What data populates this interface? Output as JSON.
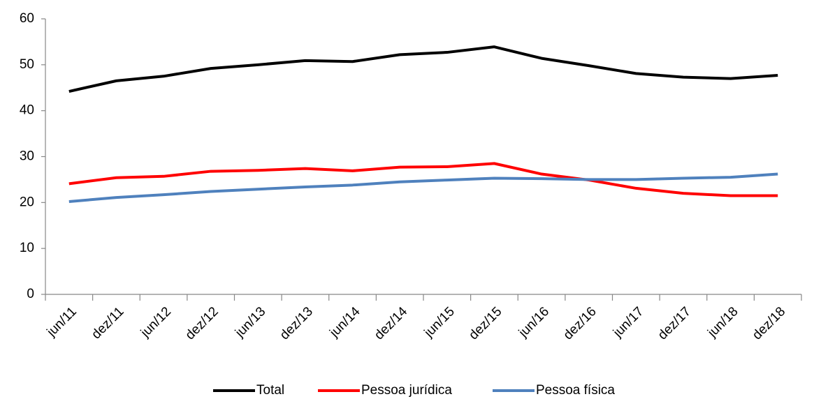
{
  "chart_data": {
    "type": "line",
    "categories": [
      "jun/11",
      "dez/11",
      "jun/12",
      "dez/12",
      "jun/13",
      "dez/13",
      "jun/14",
      "dez/14",
      "jun/15",
      "dez/15",
      "jun/16",
      "dez/16",
      "jun/17",
      "dez/17",
      "jun/18",
      "dez/18"
    ],
    "series": [
      {
        "name": "Total",
        "color": "#000000",
        "values": [
          44.2,
          46.5,
          47.5,
          49.2,
          50.0,
          50.9,
          50.7,
          52.2,
          52.7,
          53.9,
          51.4,
          49.8,
          48.1,
          47.3,
          47.0,
          47.7
        ]
      },
      {
        "name": "Pessoa jurídica",
        "color": "#ff0000",
        "values": [
          24.1,
          25.4,
          25.7,
          26.8,
          27.0,
          27.4,
          26.9,
          27.7,
          27.8,
          28.5,
          26.2,
          24.9,
          23.1,
          22.0,
          21.5,
          21.5
        ]
      },
      {
        "name": "Pessoa física",
        "color": "#4f81bd",
        "values": [
          20.2,
          21.1,
          21.7,
          22.4,
          22.9,
          23.4,
          23.8,
          24.5,
          24.9,
          25.3,
          25.2,
          25.0,
          25.0,
          25.3,
          25.5,
          26.2
        ]
      }
    ],
    "ylim": [
      0,
      60
    ],
    "yticks": [
      0,
      10,
      20,
      30,
      40,
      50,
      60
    ],
    "grid": false,
    "legend": "bottom"
  }
}
